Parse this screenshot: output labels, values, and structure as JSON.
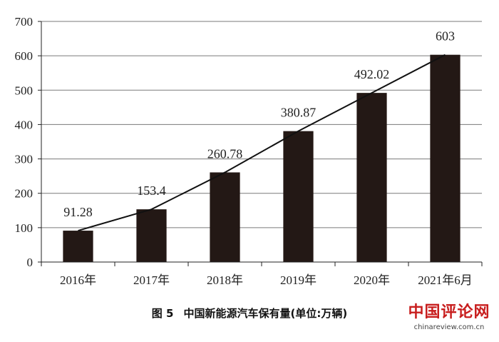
{
  "chart_data": {
    "type": "bar",
    "categories": [
      "2016年",
      "2017年",
      "2018年",
      "2019年",
      "2020年",
      "2021年6月"
    ],
    "values": [
      91.28,
      153.4,
      260.78,
      380.87,
      492.02,
      603
    ],
    "data_labels": [
      "91.28",
      "153.4",
      "260.78",
      "380.87",
      "492.02",
      "603"
    ],
    "trend_line": true,
    "ylim": [
      0,
      700
    ],
    "yticks": [
      0,
      100,
      200,
      300,
      400,
      500,
      600,
      700
    ],
    "grid": true,
    "bar_color": "#231815",
    "figure_number": "图 5",
    "title": "中国新能源汽车保有量(单位:万辆)"
  },
  "watermark": {
    "logo_text": "中国评论网",
    "url": "chinareview.com.cn",
    "color": "#c81e1e"
  }
}
